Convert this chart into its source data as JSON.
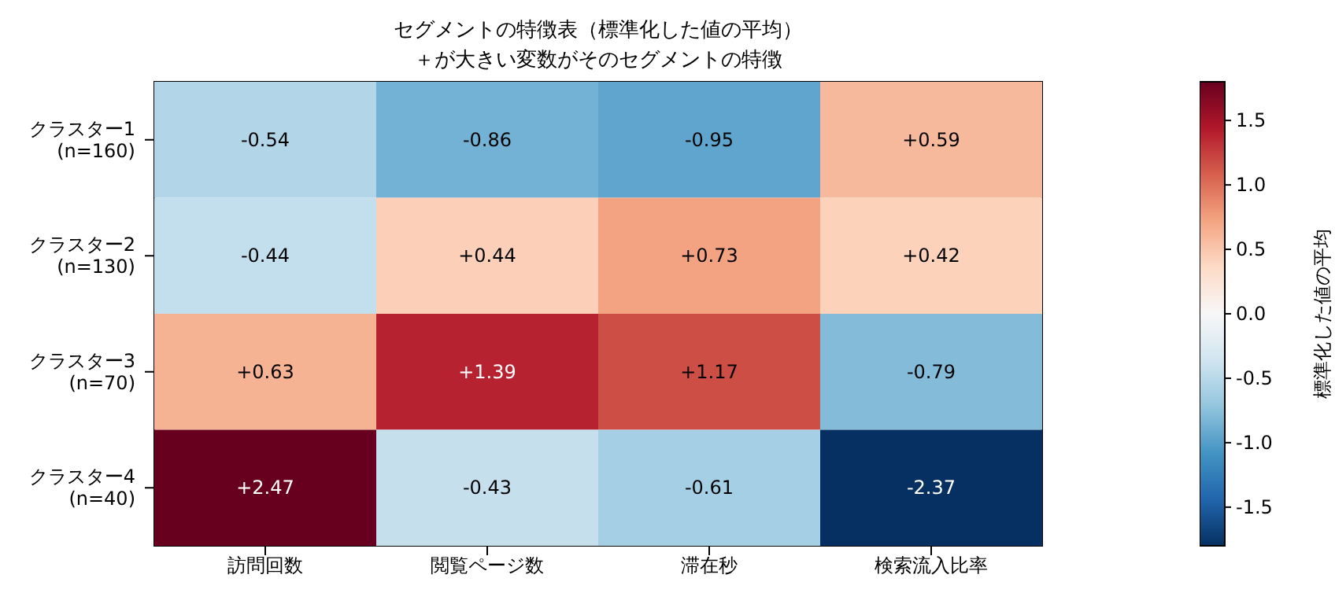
{
  "chart_data": {
    "type": "heatmap",
    "title": "セグメントの特徴表（標準化した値の平均）",
    "subtitle": "＋が大きい変数がそのセグメントの特徴",
    "categories": [
      "訪問回数",
      "閲覧ページ数",
      "滞在秒",
      "検索流入比率"
    ],
    "y_categories": [
      "クラスター1\n(n=160)",
      "クラスター2\n(n=130)",
      "クラスター3\n(n=70)",
      "クラスター4\n(n=40)"
    ],
    "cells": [
      [
        -0.54,
        -0.86,
        -0.95,
        0.59
      ],
      [
        -0.44,
        0.44,
        0.73,
        0.42
      ],
      [
        0.63,
        1.39,
        1.17,
        -0.79
      ],
      [
        2.47,
        -0.43,
        -0.61,
        -2.37
      ]
    ],
    "cell_labels": [
      [
        "-0.54",
        "-0.86",
        "-0.95",
        "+0.59"
      ],
      [
        "-0.44",
        "+0.44",
        "+0.73",
        "+0.42"
      ],
      [
        "+0.63",
        "+1.39",
        "+1.17",
        "-0.79"
      ],
      [
        "+2.47",
        "-0.43",
        "-0.61",
        "-2.37"
      ]
    ],
    "clabel": "標準化した値の平均",
    "clim": [
      -1.8,
      1.8
    ],
    "cticks": [
      {
        "value": -1.5,
        "label": "-1.5"
      },
      {
        "value": -1,
        "label": "-1.0"
      },
      {
        "value": -0.5,
        "label": "-0.5"
      },
      {
        "value": 0,
        "label": "0.0"
      },
      {
        "value": 0.5,
        "label": "0.5"
      },
      {
        "value": 1,
        "label": "1.0"
      },
      {
        "value": 1.5,
        "label": "1.5"
      }
    ]
  }
}
